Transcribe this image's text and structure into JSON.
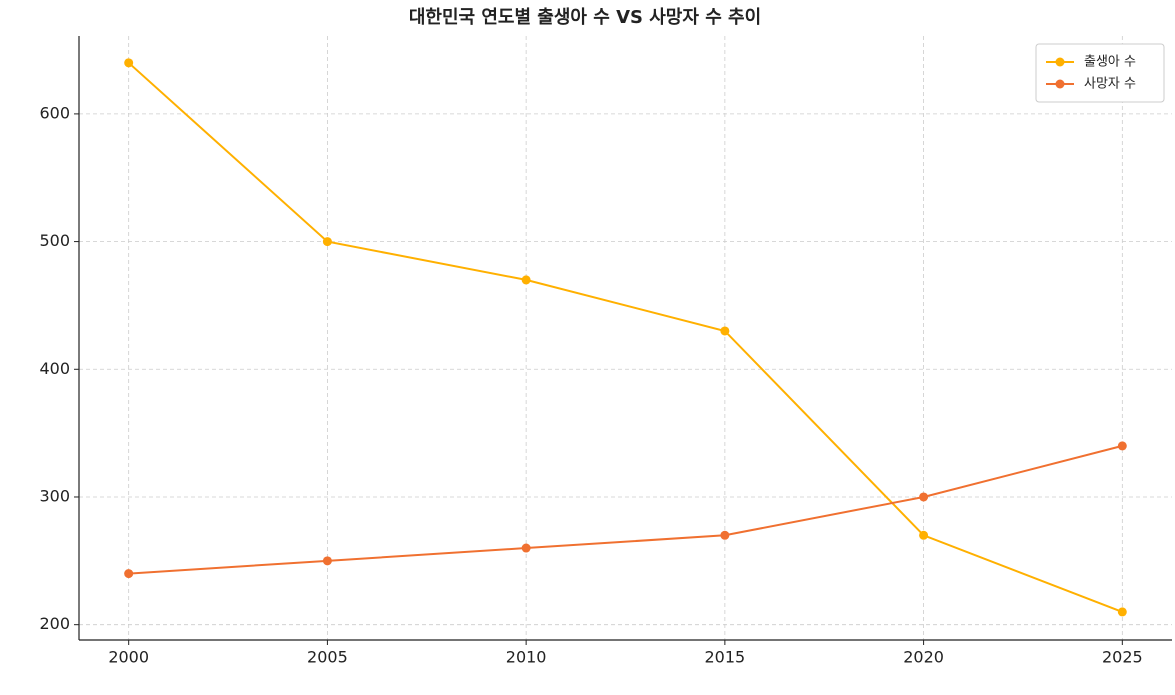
{
  "chart_data": {
    "type": "line",
    "title": "대한민국 연도별 출생아 수 VS 사망자 수 추이",
    "x": [
      2000,
      2005,
      2010,
      2015,
      2020,
      2025
    ],
    "series": [
      {
        "name": "출생아 수",
        "color": "#ffb000",
        "values": [
          640,
          500,
          470,
          430,
          270,
          210
        ]
      },
      {
        "name": "사망자 수",
        "color": "#f07030",
        "values": [
          240,
          250,
          260,
          270,
          300,
          340
        ]
      }
    ],
    "xlim": [
      1998.75,
      2026.25
    ],
    "xticks": [
      2000,
      2005,
      2010,
      2015,
      2020,
      2025
    ],
    "ylim": [
      188,
      661
    ],
    "yticks": [
      200,
      300,
      400,
      500,
      600
    ],
    "grid": true,
    "legend": "upper right",
    "markers": true
  }
}
